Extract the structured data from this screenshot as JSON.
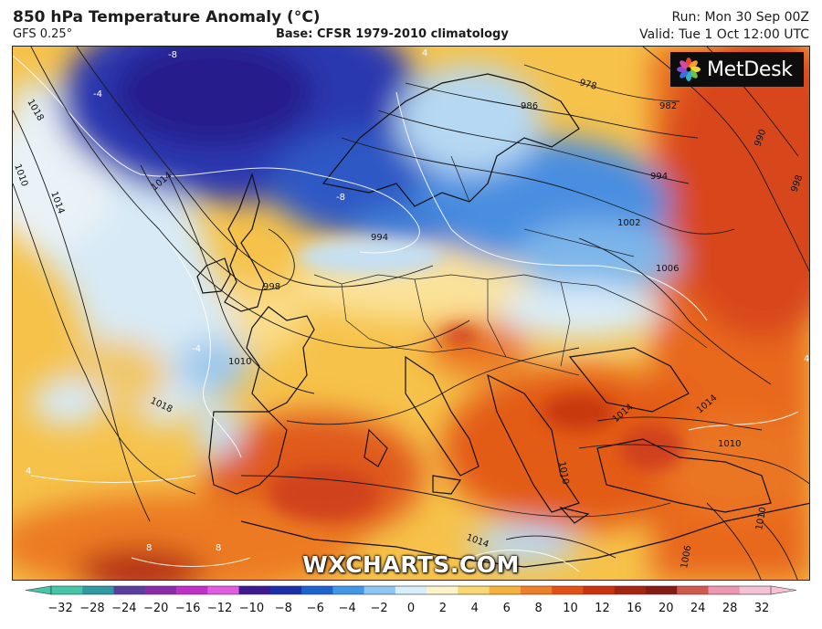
{
  "header": {
    "title": "850 hPa Temperature Anomaly (°C)",
    "model": "GFS 0.25°",
    "base": "Base: CFSR 1979-2010 climatology",
    "run": "Run: Mon 30 Sep 00Z",
    "valid": "Valid: Tue 1 Oct 12:00 UTC"
  },
  "brand": {
    "logo_text": "MetDesk",
    "watermark": "WXCHARTS.COM"
  },
  "isobar_labels": [
    "1018",
    "1014",
    "1010",
    "1014",
    "1018",
    "998",
    "998",
    "994",
    "994",
    "1002",
    "1006",
    "982",
    "978",
    "986",
    "990",
    "998",
    "1010",
    "1014",
    "1018",
    "1014",
    "1014",
    "1010",
    "1010",
    "1006",
    "1014",
    "1010"
  ],
  "anomaly_labels": [
    "-8",
    "-8",
    "-4",
    "-4",
    "4",
    "4",
    "8",
    "8",
    "4"
  ],
  "colorbar": {
    "ticks": [
      "−32",
      "−28",
      "−24",
      "−20",
      "−16",
      "−12",
      "−10",
      "−8",
      "−6",
      "−4",
      "−2",
      "0",
      "2",
      "4",
      "6",
      "8",
      "10",
      "12",
      "16",
      "20",
      "24",
      "28",
      "32"
    ],
    "colors": [
      "#46c6a6",
      "#2f9aa0",
      "#5b3fa0",
      "#8b2cab",
      "#c030c8",
      "#e25be0",
      "#3d1a8f",
      "#1c2fa8",
      "#1e62d0",
      "#4296e6",
      "#8fc6f2",
      "#d8eefb",
      "#fdf4c9",
      "#f8d872",
      "#f4b23f",
      "#ee8028",
      "#e45117",
      "#c8320f",
      "#a42511",
      "#861c14",
      "#d05a4e",
      "#ec96b2",
      "#f5c2d5"
    ]
  }
}
